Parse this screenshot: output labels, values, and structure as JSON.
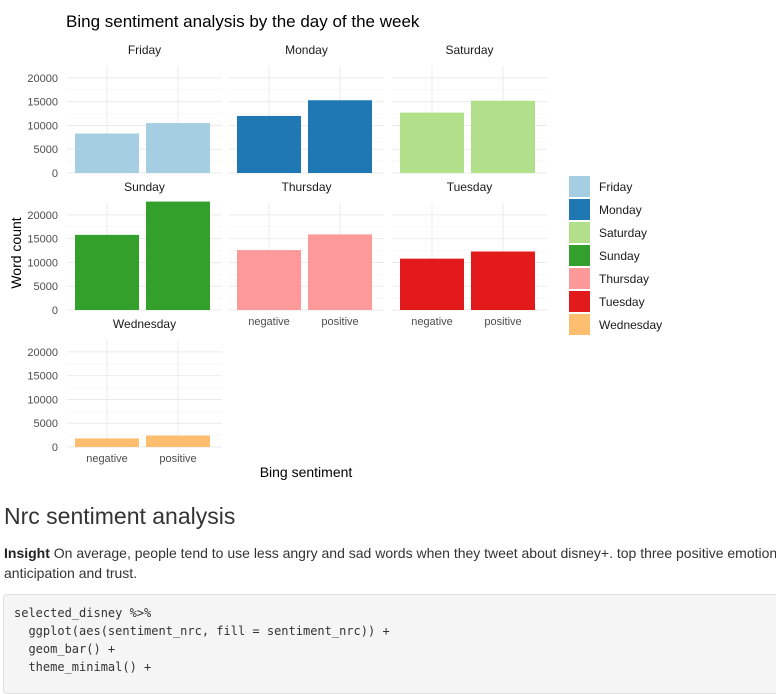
{
  "chart_data": {
    "type": "bar",
    "title": "Bing sentiment analysis by the day of the week",
    "xlabel": "Bing sentiment",
    "ylabel": "Word count",
    "ylim": [
      0,
      22500
    ],
    "y_ticks": [
      0,
      5000,
      10000,
      15000,
      20000
    ],
    "y_tick_labels": [
      "0",
      "5000",
      "10000",
      "15000",
      "20000"
    ],
    "categories": [
      "negative",
      "positive"
    ],
    "grid": true,
    "legend_position": "right",
    "facets": [
      {
        "name": "Friday",
        "color": "#A6CEE3",
        "values": [
          8300,
          10500
        ]
      },
      {
        "name": "Monday",
        "color": "#1F78B4",
        "values": [
          12000,
          15300
        ]
      },
      {
        "name": "Saturday",
        "color": "#B2DF8A",
        "values": [
          12700,
          15200
        ]
      },
      {
        "name": "Sunday",
        "color": "#33A02C",
        "values": [
          15800,
          22800
        ]
      },
      {
        "name": "Thursday",
        "color": "#FB9A99",
        "values": [
          12600,
          15900
        ]
      },
      {
        "name": "Tuesday",
        "color": "#E31A1C",
        "values": [
          10800,
          12300
        ]
      },
      {
        "name": "Wednesday",
        "color": "#FDBF6F",
        "values": [
          1800,
          2400
        ]
      }
    ]
  },
  "section": {
    "heading": "Nrc sentiment analysis",
    "insight_label": "Insight",
    "insight_text": " On average, people tend to use less angry and sad words when they tweet about disney+. top three positive emotion anticipation and trust."
  },
  "code": {
    "lines": [
      "selected_disney %>%",
      "  ggplot(aes(sentiment_nrc, fill = sentiment_nrc)) +",
      "  geom_bar() +",
      "  theme_minimal() +"
    ]
  }
}
